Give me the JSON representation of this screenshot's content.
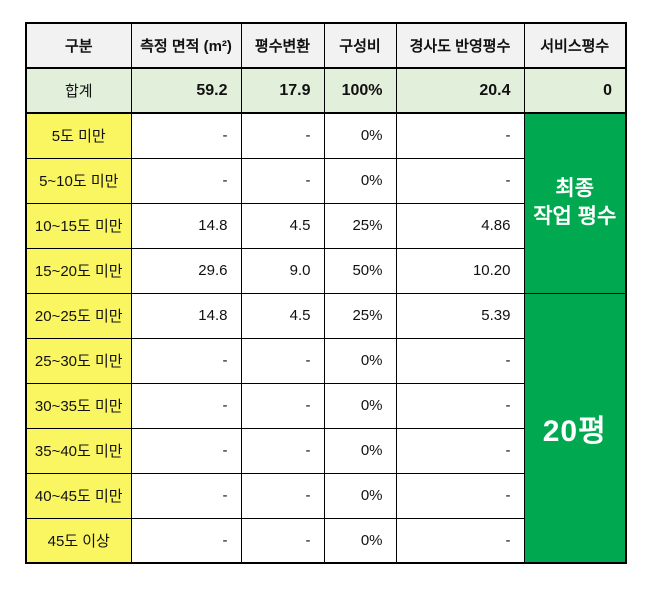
{
  "header": {
    "columns": [
      "구분",
      "측정 면적 (m²)",
      "평수변환",
      "구성비",
      "경사도 반영평수",
      "서비스평수"
    ]
  },
  "total": {
    "label": "합계",
    "area": "59.2",
    "pyeong": "17.9",
    "ratio": "100%",
    "slope": "20.4",
    "service": "0"
  },
  "rows": [
    {
      "label": "5도 미만",
      "area": "-",
      "pyeong": "-",
      "ratio": "0%",
      "slope": "-"
    },
    {
      "label": "5~10도 미만",
      "area": "-",
      "pyeong": "-",
      "ratio": "0%",
      "slope": "-"
    },
    {
      "label": "10~15도 미만",
      "area": "14.8",
      "pyeong": "4.5",
      "ratio": "25%",
      "slope": "4.86"
    },
    {
      "label": "15~20도 미만",
      "area": "29.6",
      "pyeong": "9.0",
      "ratio": "50%",
      "slope": "10.20"
    },
    {
      "label": "20~25도 미만",
      "area": "14.8",
      "pyeong": "4.5",
      "ratio": "25%",
      "slope": "5.39"
    },
    {
      "label": "25~30도 미만",
      "area": "-",
      "pyeong": "-",
      "ratio": "0%",
      "slope": "-"
    },
    {
      "label": "30~35도 미만",
      "area": "-",
      "pyeong": "-",
      "ratio": "0%",
      "slope": "-"
    },
    {
      "label": "35~40도 미만",
      "area": "-",
      "pyeong": "-",
      "ratio": "0%",
      "slope": "-"
    },
    {
      "label": "40~45도 미만",
      "area": "-",
      "pyeong": "-",
      "ratio": "0%",
      "slope": "-"
    },
    {
      "label": "45도 이상",
      "area": "-",
      "pyeong": "-",
      "ratio": "0%",
      "slope": "-"
    }
  ],
  "merged": {
    "final_line1": "최종",
    "final_line2": "작업 평수",
    "total_pyeong": "20평"
  },
  "colors": {
    "header_bg": "#F2F2F2",
    "total_bg": "#E2EFDA",
    "category_bg": "#FAF662",
    "merged_bg": "#00A94F",
    "merged_text": "#FFFFFF",
    "border": "#000000"
  }
}
